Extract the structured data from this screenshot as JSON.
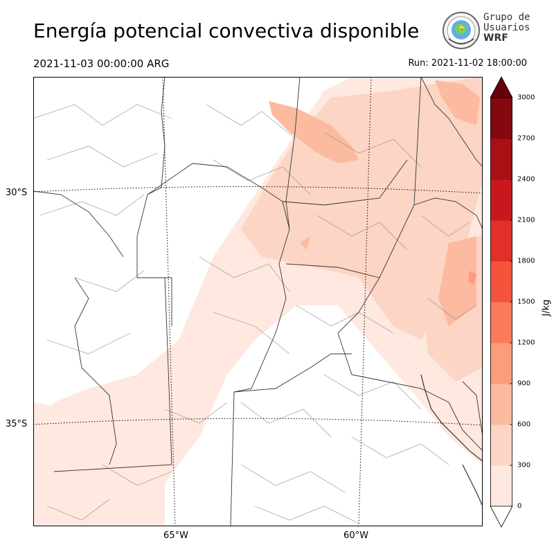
{
  "header": {
    "title": "Energía potencial convectiva disponible",
    "valid_time": "2021-11-03 00:00:00 ARG",
    "run_time": "Run: 2021-11-02 18:00:00"
  },
  "logo": {
    "line1": "Grupo de",
    "line2": "Usuarios",
    "line3": "WRF"
  },
  "map": {
    "lat_labels": [
      "30°S",
      "35°S"
    ],
    "lon_labels": [
      "65°W",
      "60°W"
    ]
  },
  "colorbar": {
    "unit": "J/kg",
    "ticks": [
      "3000",
      "2700",
      "2400",
      "2100",
      "1800",
      "1500",
      "1200",
      "900",
      "600",
      "300",
      "0"
    ],
    "colors": [
      "#fee8df",
      "#fdd5c4",
      "#fcbaa0",
      "#fc9c7d",
      "#fb7b5b",
      "#f5543c",
      "#e32f27",
      "#c9181d",
      "#a91016",
      "#84080f"
    ],
    "over_color": "#67000d"
  }
}
